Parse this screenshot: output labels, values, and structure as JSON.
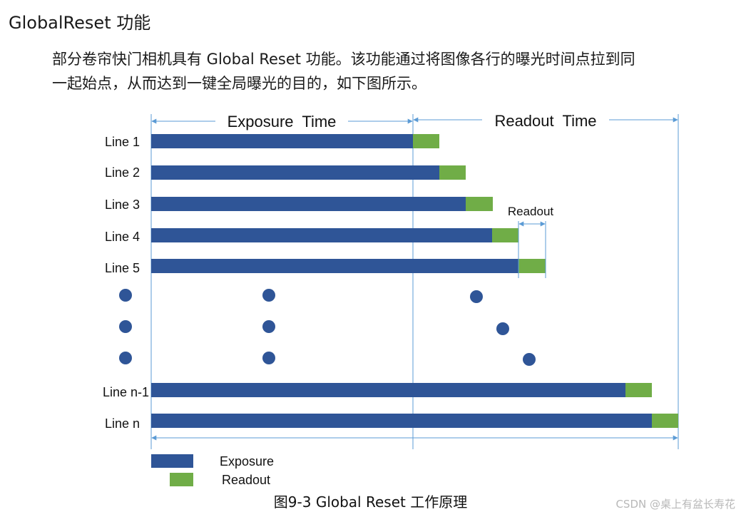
{
  "section_title": "GlobalReset 功能",
  "paragraph": [
    "部分卷帘快门相机具有 Global Reset 功能。该功能通过将图像各行的曝光时间点拉到同",
    "一起始点，从而达到一键全局曝光的目的，如下图所示。"
  ],
  "diagram": {
    "exposure_time_label": "Exposure  Time",
    "readout_time_label": "Readout  Time",
    "readout_marker_label": "Readout",
    "lines": [
      {
        "label": "Line 1"
      },
      {
        "label": "Line 2"
      },
      {
        "label": "Line 3"
      },
      {
        "label": "Line 4"
      },
      {
        "label": "Line 5"
      },
      {
        "label": "Line n-1"
      },
      {
        "label": "Line n"
      }
    ],
    "legend": {
      "exposure": "Exposure",
      "readout": "Readout"
    },
    "colors": {
      "exposure": "#2F5597",
      "readout": "#70AD47",
      "guide": "#5B9BD5"
    }
  },
  "caption": "图9-3  Global Reset 工作原理",
  "watermark": "CSDN @桌上有盆长寿花"
}
